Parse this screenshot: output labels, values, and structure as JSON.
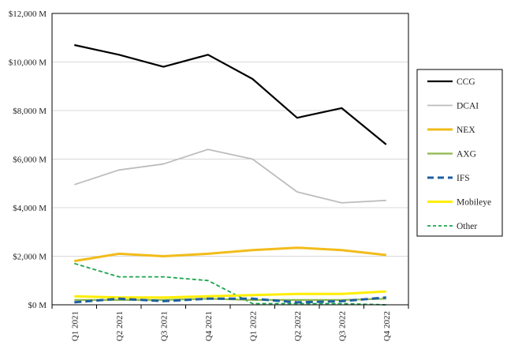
{
  "chart_data": {
    "type": "line",
    "title": "",
    "xlabel": "",
    "ylabel": "",
    "categories": [
      "Q1 2021",
      "Q2 2021",
      "Q3 2021",
      "Q4 2021",
      "Q1 2022",
      "Q2 2022",
      "Q3 2022",
      "Q4 2022"
    ],
    "y_ticks": [
      0,
      2000,
      4000,
      6000,
      8000,
      10000,
      12000
    ],
    "y_tick_labels": [
      "$0 M",
      "$2,000 M",
      "$4,000 M",
      "$6,000 M",
      "$8,000 M",
      "$10,000 M",
      "$12,000 M"
    ],
    "ylim": [
      0,
      12000
    ],
    "grid": "horizontal",
    "legend_position": "right",
    "series": [
      {
        "name": "CCG",
        "color": "#000000",
        "style": "solid",
        "values": [
          10700,
          10300,
          9800,
          10300,
          9300,
          7700,
          8100,
          6600
        ]
      },
      {
        "name": "DCAI",
        "color": "#bdbdbd",
        "style": "solid",
        "values": [
          4950,
          5550,
          5800,
          6400,
          6000,
          4650,
          4200,
          4300
        ]
      },
      {
        "name": "NEX",
        "color": "#f2bc1b",
        "style": "solid",
        "values": [
          1800,
          2100,
          2000,
          2100,
          2250,
          2350,
          2250,
          2050
        ]
      },
      {
        "name": "AXG",
        "color": "#8db84a",
        "style": "solid",
        "values": [
          200,
          200,
          200,
          250,
          200,
          200,
          200,
          250
        ]
      },
      {
        "name": "IFS",
        "color": "#1f5fa0",
        "style": "dashed",
        "values": [
          100,
          250,
          150,
          250,
          250,
          100,
          150,
          300
        ]
      },
      {
        "name": "Mobileye",
        "color": "#ffee00",
        "style": "solid",
        "values": [
          350,
          300,
          300,
          350,
          400,
          450,
          450,
          550
        ]
      },
      {
        "name": "Other",
        "color": "#1aa64b",
        "style": "dashed",
        "values": [
          1700,
          1150,
          1150,
          1000,
          50,
          50,
          50,
          0
        ]
      }
    ]
  }
}
